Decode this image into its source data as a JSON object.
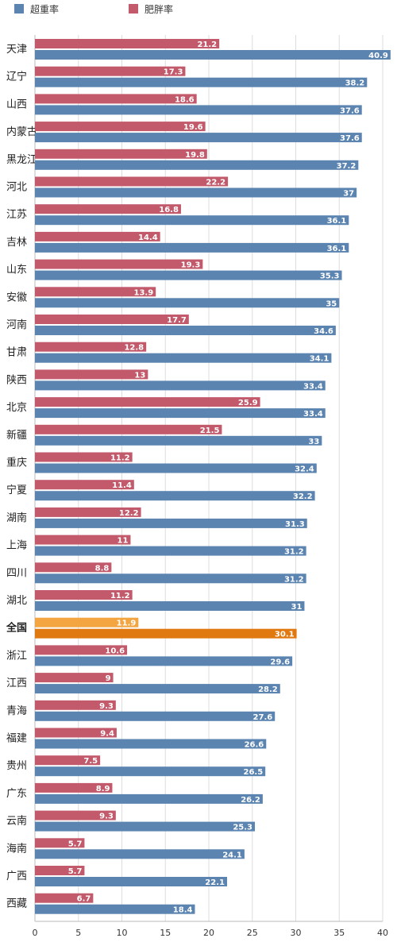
{
  "chart_data": {
    "type": "bar",
    "orientation": "horizontal",
    "categories": [
      "天津",
      "辽宁",
      "山西",
      "内蒙古",
      "黑龙江",
      "河北",
      "江苏",
      "吉林",
      "山东",
      "安徽",
      "河南",
      "甘肃",
      "陕西",
      "北京",
      "新疆",
      "重庆",
      "宁夏",
      "湖南",
      "上海",
      "四川",
      "湖北",
      "全国",
      "浙江",
      "江西",
      "青海",
      "福建",
      "贵州",
      "广东",
      "云南",
      "海南",
      "广西",
      "西藏"
    ],
    "series": [
      {
        "name": "肥胖率",
        "color": "#C25A6B",
        "values": [
          21.2,
          17.3,
          18.6,
          19.6,
          19.8,
          22.2,
          16.8,
          14.4,
          19.3,
          13.9,
          17.7,
          12.8,
          13,
          25.9,
          21.5,
          11.2,
          11.4,
          12.2,
          11,
          8.8,
          11.2,
          11.9,
          10.6,
          9,
          9.3,
          9.4,
          7.5,
          8.9,
          9.3,
          5.7,
          5.7,
          6.7
        ]
      },
      {
        "name": "超重率",
        "color": "#5B84B1",
        "values": [
          40.9,
          38.2,
          37.6,
          37.6,
          37.2,
          37,
          36.1,
          36.1,
          35.3,
          35,
          34.6,
          34.1,
          33.4,
          33.4,
          33,
          32.4,
          32.2,
          31.3,
          31.2,
          31.2,
          31,
          30.1,
          29.6,
          28.2,
          27.6,
          26.6,
          26.5,
          26.2,
          25.3,
          24.1,
          22.1,
          18.4
        ]
      }
    ],
    "highlight": {
      "category": "全国",
      "obesity_color": "#F2A541",
      "overweight_color": "#E07A10"
    },
    "xlim": [
      0,
      40
    ],
    "xticks": [
      0,
      5,
      10,
      15,
      20,
      25,
      30,
      35,
      40
    ],
    "grid": true,
    "legend": "top-left",
    "title": "",
    "xlabel": "",
    "ylabel": ""
  }
}
